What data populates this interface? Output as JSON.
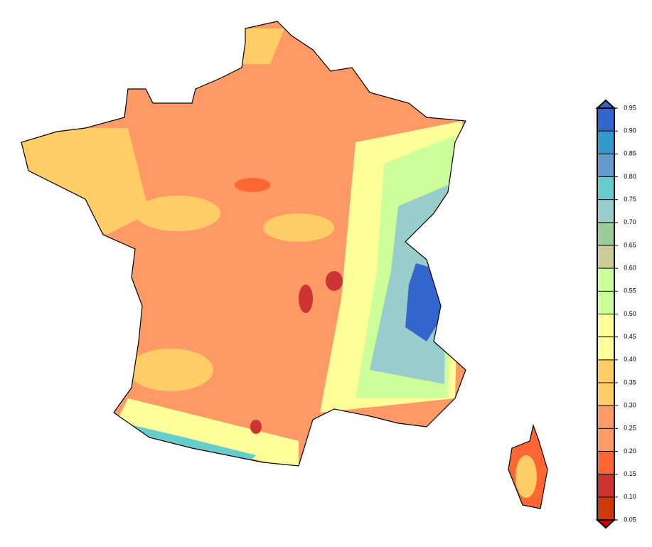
{
  "colorbar": {
    "lim": [
      0.05,
      0.95
    ],
    "ticks": [
      0.05,
      {
        "value": 0.1,
        "label": "0.10"
      },
      0.15,
      {
        "value": 0.2,
        "label": "0.20"
      },
      0.25,
      {
        "value": 0.3,
        "label": "0.30"
      },
      0.35,
      {
        "value": 0.4,
        "label": "0.40"
      },
      0.45,
      {
        "value": 0.5,
        "label": "0.50"
      },
      0.55,
      {
        "value": 0.6,
        "label": "0.60"
      },
      0.65,
      {
        "value": 0.7,
        "label": "0.70"
      },
      0.75,
      {
        "value": 0.8,
        "label": "0.80"
      },
      0.85,
      {
        "value": 0.9,
        "label": "0.90"
      },
      0.95
    ],
    "colors": [
      "#cc3a0a",
      "#cc3333",
      "#ff6633",
      "#ff9966",
      "#ff9966",
      "#ffcc66",
      "#ffcc66",
      "#ffff99",
      "#ffff99",
      "#ccff99",
      "#ccff99",
      "#cccc99",
      "#99cc99",
      "#99cccc",
      "#66cccc",
      "#6699cc",
      "#3399cc",
      "#3366cc"
    ],
    "under_color": "#cc0000",
    "over_color": "#3366cc"
  }
}
